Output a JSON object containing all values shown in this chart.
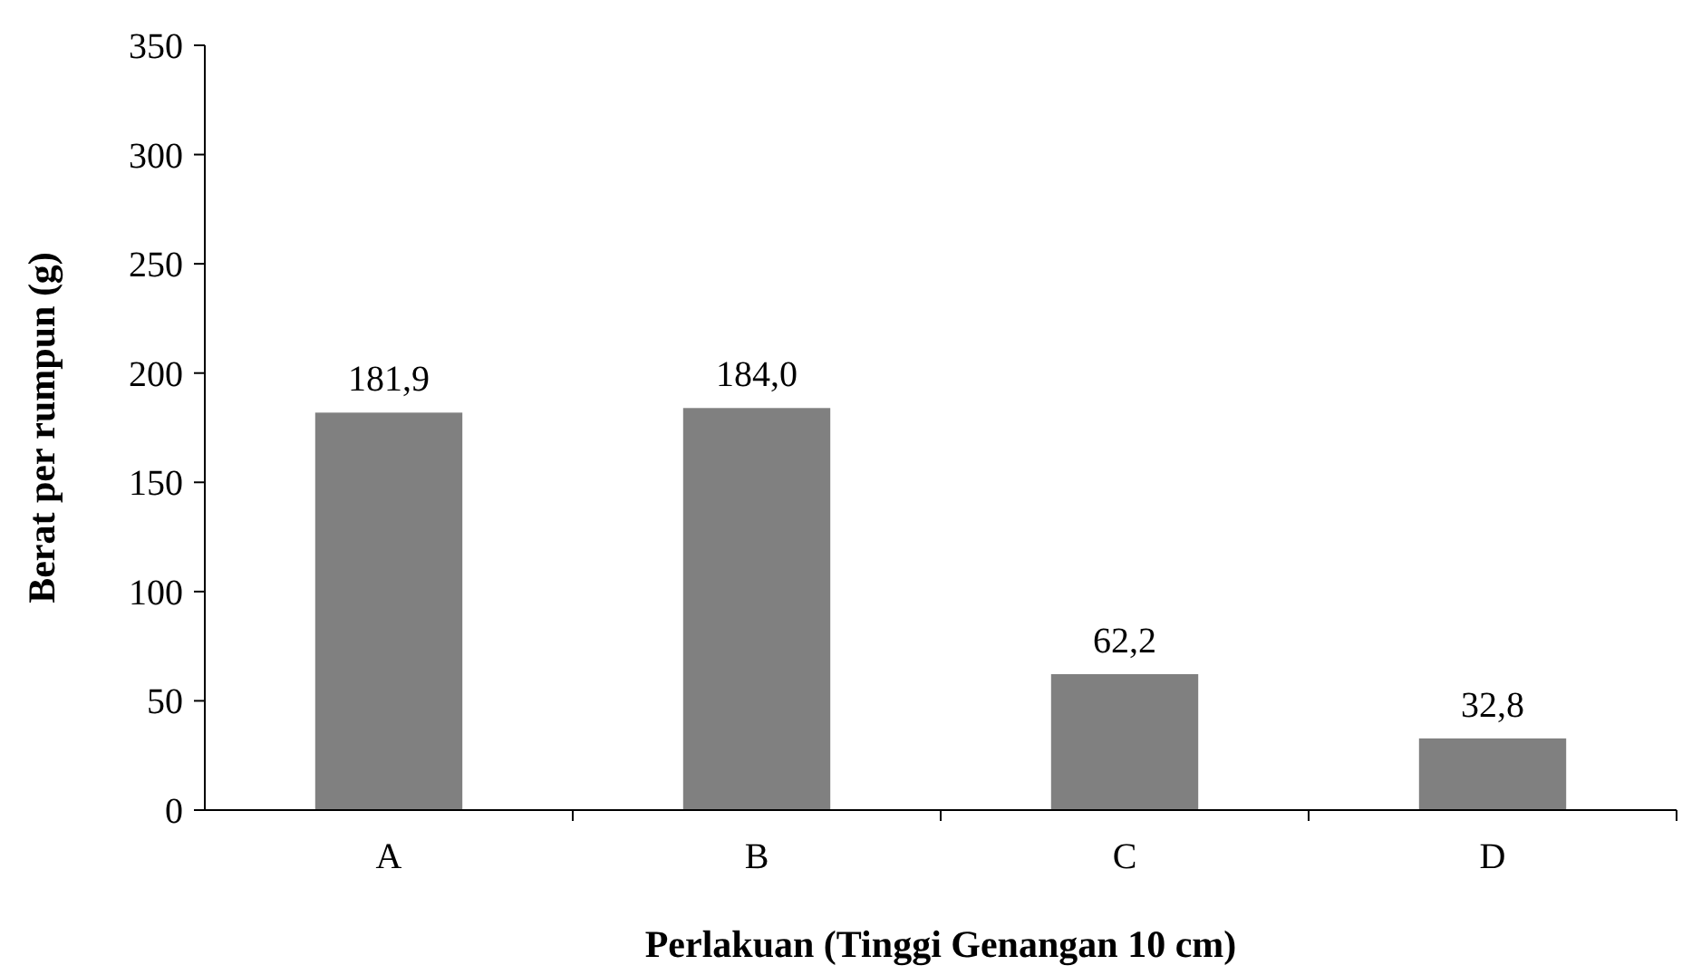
{
  "chart_data": {
    "type": "bar",
    "xlabel": "Perlakuan (Tinggi Genangan 10 cm)",
    "ylabel": "Berat per rumpun (g)",
    "categories": [
      "A",
      "B",
      "C",
      "D"
    ],
    "values": [
      181.9,
      184.0,
      62.2,
      32.8
    ],
    "value_labels": [
      "181,9",
      "184,0",
      "62,2",
      "32,8"
    ],
    "color": "#808080",
    "ylim": [
      0,
      350
    ],
    "yticks": [
      0,
      50,
      100,
      150,
      200,
      250,
      300,
      350
    ],
    "grid": false
  }
}
